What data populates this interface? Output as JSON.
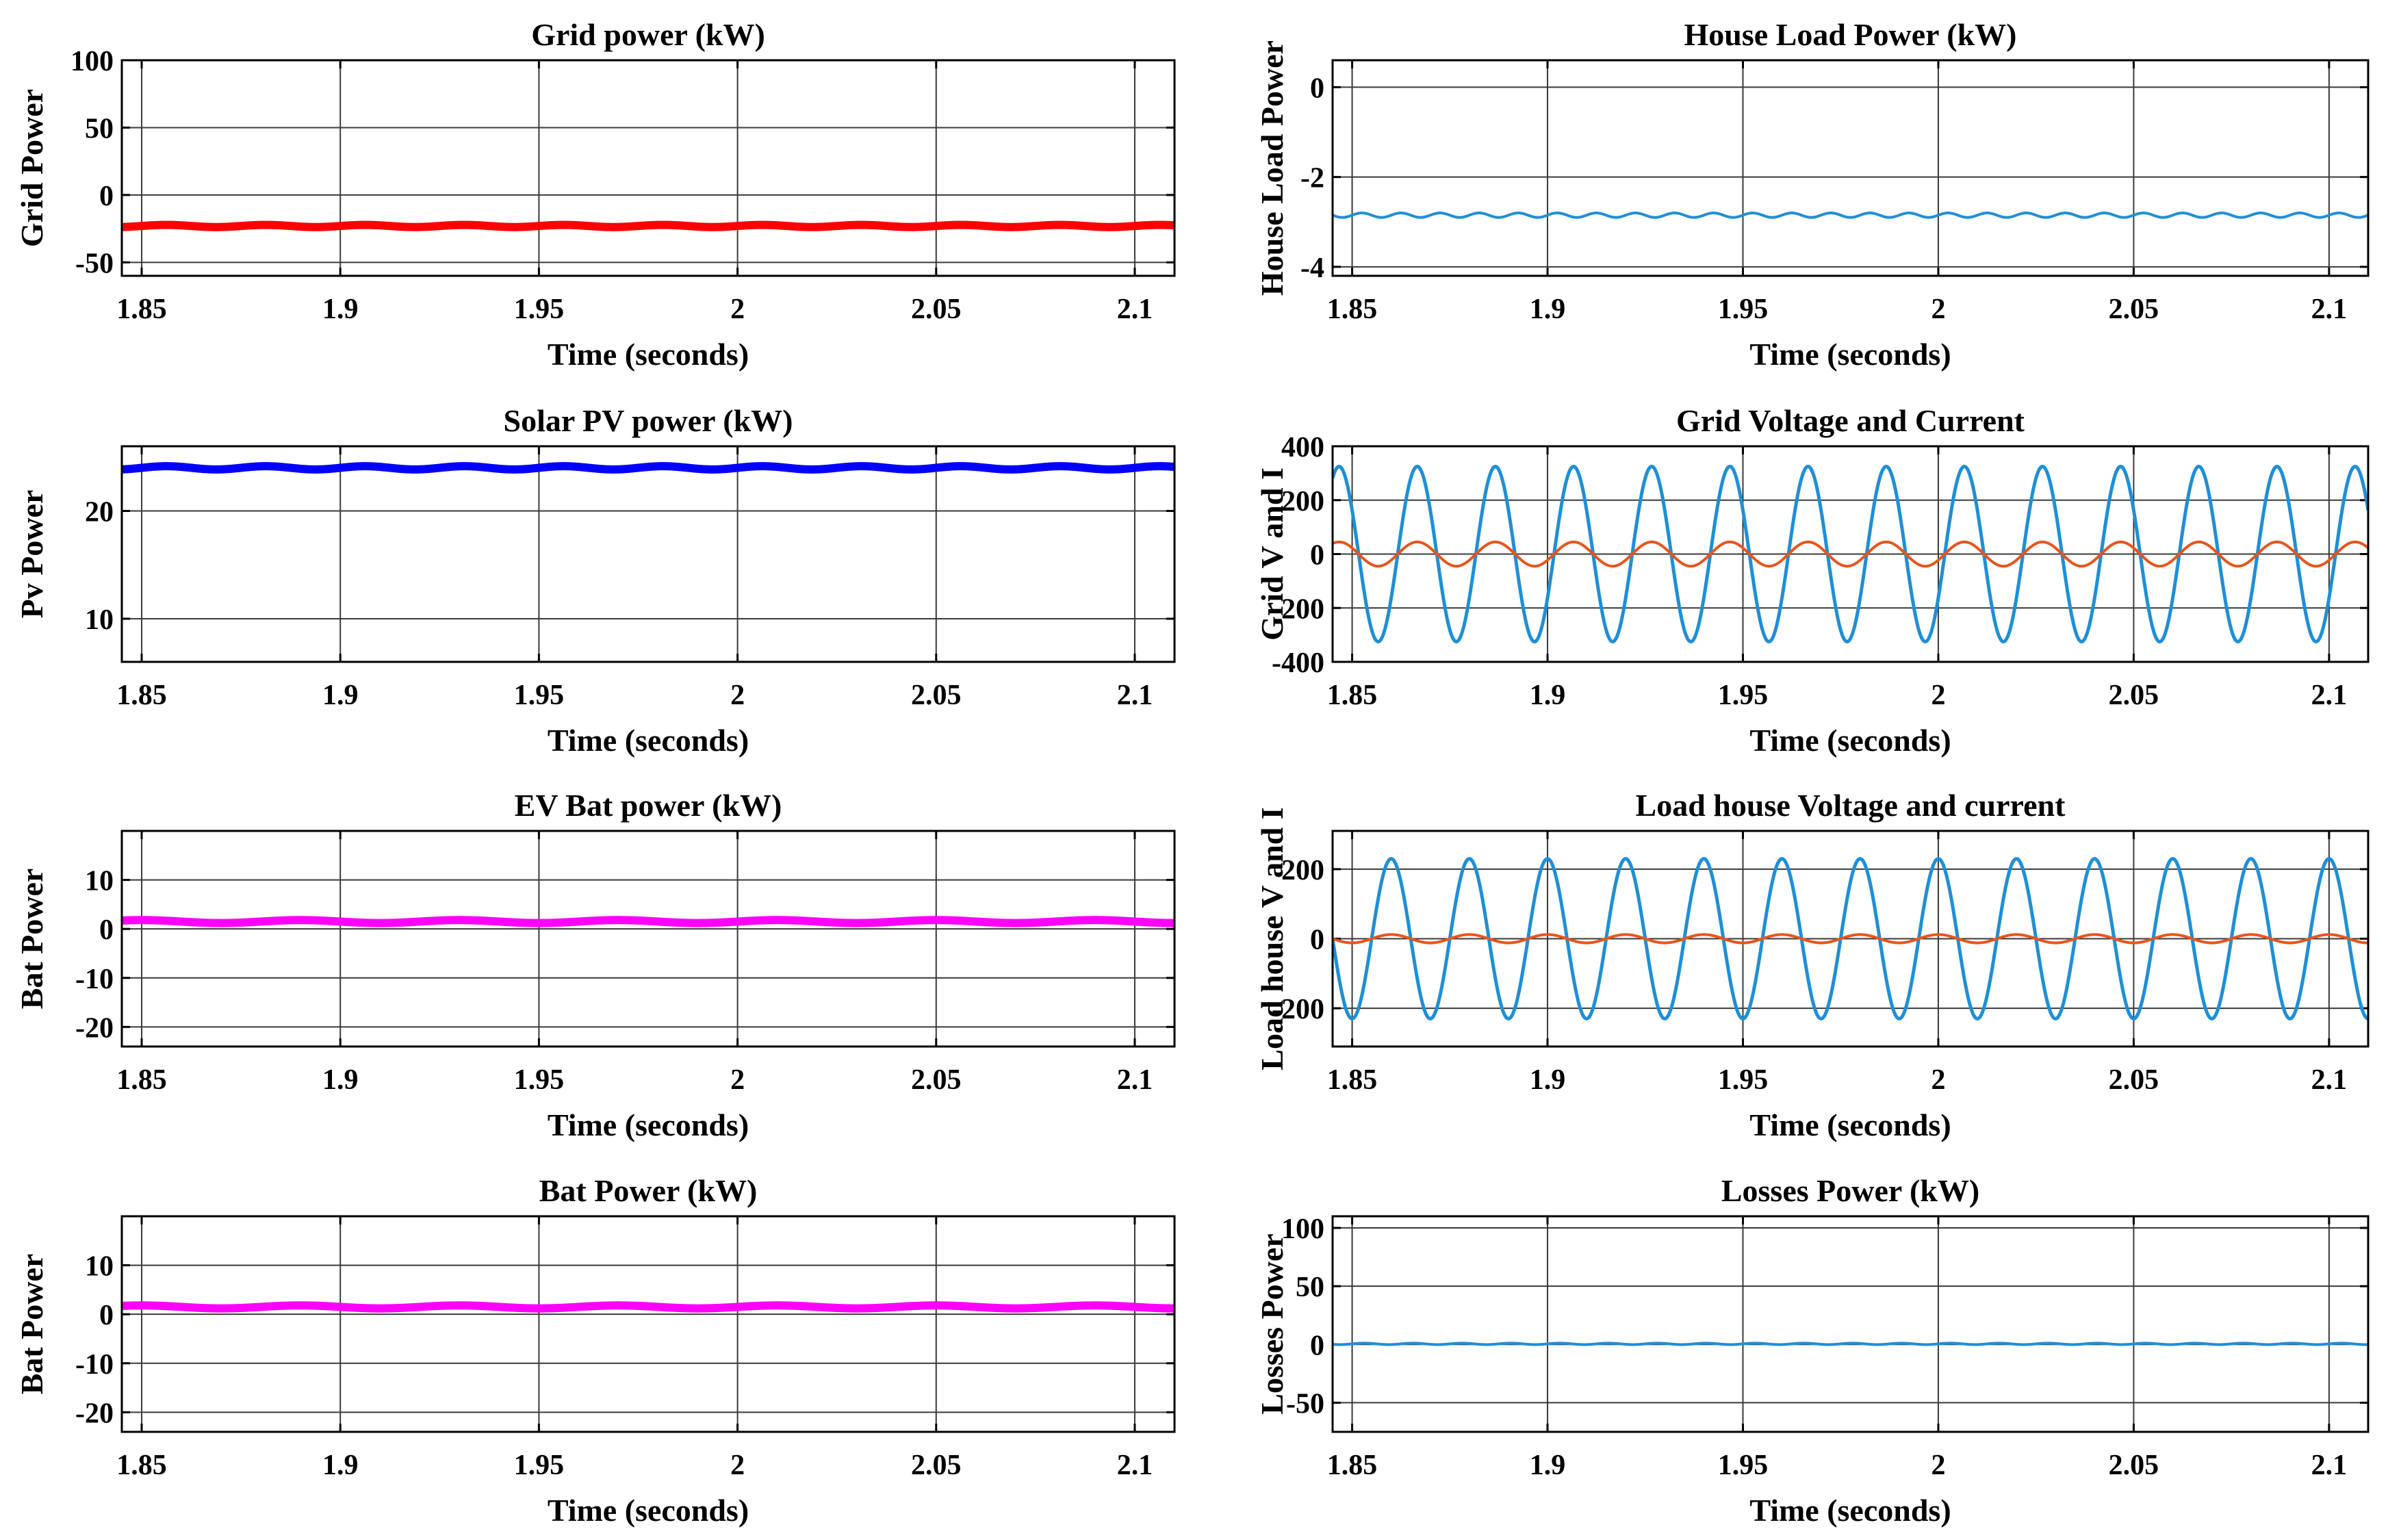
{
  "chart_data": [
    {
      "type": "line",
      "title": "Grid power (kW)",
      "xlabel": "Time (seconds)",
      "ylabel": "Grid Power",
      "xlim": [
        1.845,
        2.11
      ],
      "ylim": [
        -60,
        100
      ],
      "xticks": [
        1.85,
        1.9,
        1.95,
        2,
        2.05,
        2.1
      ],
      "xtick_labels": [
        "1.85",
        "1.9",
        "1.95",
        "2",
        "2.05",
        "2.1"
      ],
      "yticks": [
        -50,
        0,
        50,
        100
      ],
      "ytick_labels": [
        "-50",
        "0",
        "50",
        "100"
      ],
      "grid": true,
      "series": [
        {
          "name": "Grid power",
          "color": "#ff0000",
          "width": 12,
          "signal": {
            "kind": "flat",
            "value": -23,
            "ripple": 0.8,
            "ripple_freq": 40
          }
        }
      ]
    },
    {
      "type": "line",
      "title": "House Load Power (kW)",
      "xlabel": "Time (seconds)",
      "ylabel": "House Load Power",
      "xlim": [
        1.845,
        2.11
      ],
      "ylim": [
        -4.2,
        0.6
      ],
      "xticks": [
        1.85,
        1.9,
        1.95,
        2,
        2.05,
        2.1
      ],
      "xtick_labels": [
        "1.85",
        "1.9",
        "1.95",
        "2",
        "2.05",
        "2.1"
      ],
      "yticks": [
        -4,
        -2,
        0
      ],
      "ytick_labels": [
        "-4",
        "-2",
        "0"
      ],
      "grid": true,
      "series": [
        {
          "name": "House load power",
          "color": "#1f8fd6",
          "width": 4,
          "signal": {
            "kind": "flat",
            "value": -2.85,
            "ripple": 0.05,
            "ripple_freq": 100
          }
        }
      ]
    },
    {
      "type": "line",
      "title": "Solar PV power (kW)",
      "xlabel": "Time (seconds)",
      "ylabel": "Pv Power",
      "xlim": [
        1.845,
        2.11
      ],
      "ylim": [
        6,
        26
      ],
      "xticks": [
        1.85,
        1.9,
        1.95,
        2,
        2.05,
        2.1
      ],
      "xtick_labels": [
        "1.85",
        "1.9",
        "1.95",
        "2",
        "2.05",
        "2.1"
      ],
      "yticks": [
        10,
        20
      ],
      "ytick_labels": [
        "10",
        "20"
      ],
      "grid": true,
      "series": [
        {
          "name": "Solar PV power",
          "color": "#0000ff",
          "width": 12,
          "signal": {
            "kind": "flat",
            "value": 24,
            "ripple": 0.15,
            "ripple_freq": 40
          }
        }
      ]
    },
    {
      "type": "line",
      "title": "Grid Voltage and Current",
      "xlabel": "Time (seconds)",
      "ylabel": "Grid V and I",
      "xlim": [
        1.845,
        2.11
      ],
      "ylim": [
        -400,
        400
      ],
      "xticks": [
        1.85,
        1.9,
        1.95,
        2,
        2.05,
        2.1
      ],
      "xtick_labels": [
        "1.85",
        "1.9",
        "1.95",
        "2",
        "2.05",
        "2.1"
      ],
      "yticks": [
        -400,
        -200,
        0,
        200,
        400
      ],
      "ytick_labels": [
        "-400",
        "-200",
        "0",
        "200",
        "400"
      ],
      "grid": true,
      "series": [
        {
          "name": "Grid voltage",
          "color": "#1f8fd6",
          "width": 5,
          "signal": {
            "kind": "sine",
            "amplitude": 325,
            "frequency": 50,
            "phase_deg": -30
          }
        },
        {
          "name": "Grid current",
          "color": "#e8551c",
          "width": 4,
          "signal": {
            "kind": "sine",
            "amplitude": 45,
            "frequency": 50,
            "phase_deg": -30
          }
        }
      ]
    },
    {
      "type": "line",
      "title": "EV Bat power (kW)",
      "xlabel": "Time (seconds)",
      "ylabel": "Bat Power",
      "xlim": [
        1.845,
        2.11
      ],
      "ylim": [
        -24,
        20
      ],
      "xticks": [
        1.85,
        1.9,
        1.95,
        2,
        2.05,
        2.1
      ],
      "xtick_labels": [
        "1.85",
        "1.9",
        "1.95",
        "2",
        "2.05",
        "2.1"
      ],
      "yticks": [
        -20,
        -10,
        0,
        10
      ],
      "ytick_labels": [
        "-20",
        "-10",
        "0",
        "10"
      ],
      "grid": true,
      "series": [
        {
          "name": "EV battery power",
          "color": "#ff00ff",
          "width": 12,
          "signal": {
            "kind": "flat",
            "value": 1.5,
            "ripple": 0.3,
            "ripple_freq": 25
          }
        }
      ]
    },
    {
      "type": "line",
      "title": "Load house Voltage and current",
      "xlabel": "Time (seconds)",
      "ylabel": "Load house V and I",
      "xlim": [
        1.845,
        2.11
      ],
      "ylim": [
        -310,
        310
      ],
      "xticks": [
        1.85,
        1.9,
        1.95,
        2,
        2.05,
        2.1
      ],
      "xtick_labels": [
        "1.85",
        "1.9",
        "1.95",
        "2",
        "2.05",
        "2.1"
      ],
      "yticks": [
        -200,
        0,
        200
      ],
      "ytick_labels": [
        "-200",
        "0",
        "200"
      ],
      "grid": true,
      "series": [
        {
          "name": "Load house voltage",
          "color": "#1f8fd6",
          "width": 5,
          "signal": {
            "kind": "sine",
            "amplitude": 230,
            "frequency": 50,
            "phase_deg": 90
          }
        },
        {
          "name": "Load house current",
          "color": "#e8551c",
          "width": 4,
          "signal": {
            "kind": "sine",
            "amplitude": 12,
            "frequency": 50,
            "phase_deg": 90
          }
        }
      ]
    },
    {
      "type": "line",
      "title": "Bat Power (kW)",
      "xlabel": "Time (seconds)",
      "ylabel": "Bat Power",
      "xlim": [
        1.845,
        2.11
      ],
      "ylim": [
        -24,
        20
      ],
      "xticks": [
        1.85,
        1.9,
        1.95,
        2,
        2.05,
        2.1
      ],
      "xtick_labels": [
        "1.85",
        "1.9",
        "1.95",
        "2",
        "2.05",
        "2.1"
      ],
      "yticks": [
        -20,
        -10,
        0,
        10
      ],
      "ytick_labels": [
        "-20",
        "-10",
        "0",
        "10"
      ],
      "grid": true,
      "series": [
        {
          "name": "Battery power",
          "color": "#ff00ff",
          "width": 12,
          "signal": {
            "kind": "flat",
            "value": 1.5,
            "ripple": 0.3,
            "ripple_freq": 25
          }
        }
      ]
    },
    {
      "type": "line",
      "title": "Losses Power (kW)",
      "xlabel": "Time (seconds)",
      "ylabel": "Losses Power",
      "xlim": [
        1.845,
        2.11
      ],
      "ylim": [
        -75,
        110
      ],
      "xticks": [
        1.85,
        1.9,
        1.95,
        2,
        2.05,
        2.1
      ],
      "xtick_labels": [
        "1.85",
        "1.9",
        "1.95",
        "2",
        "2.05",
        "2.1"
      ],
      "yticks": [
        -50,
        0,
        50,
        100
      ],
      "ytick_labels": [
        "-50",
        "0",
        "50",
        "100"
      ],
      "grid": true,
      "series": [
        {
          "name": "Losses power",
          "color": "#1f8fd6",
          "width": 4,
          "signal": {
            "kind": "flat",
            "value": 0.5,
            "ripple": 0.6,
            "ripple_freq": 80
          }
        }
      ]
    }
  ]
}
